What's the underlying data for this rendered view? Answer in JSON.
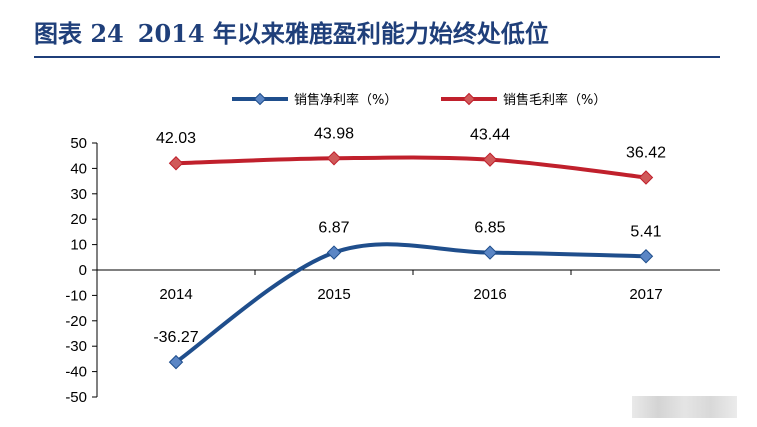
{
  "figure": {
    "label": "图表 24",
    "title": "2014 年以来雅鹿盈利能力始终处低位"
  },
  "chart_data": {
    "type": "line",
    "categories": [
      "2014",
      "2015",
      "2016",
      "2017"
    ],
    "series": [
      {
        "name": "销售净利率（%）",
        "values": [
          -36.27,
          6.87,
          6.85,
          5.41
        ],
        "color": "#1f4e8c",
        "marker": "diamond"
      },
      {
        "name": "销售毛利率（%）",
        "values": [
          42.03,
          43.98,
          43.44,
          36.42
        ],
        "color": "#c0202c",
        "marker": "diamond"
      }
    ],
    "yticks": [
      50,
      40,
      30,
      20,
      10,
      0,
      -10,
      -20,
      -30,
      -40,
      -50
    ],
    "ylim": [
      -50,
      50
    ],
    "smooth": true,
    "grid": false,
    "legend_position": "top",
    "data_labels": true
  }
}
